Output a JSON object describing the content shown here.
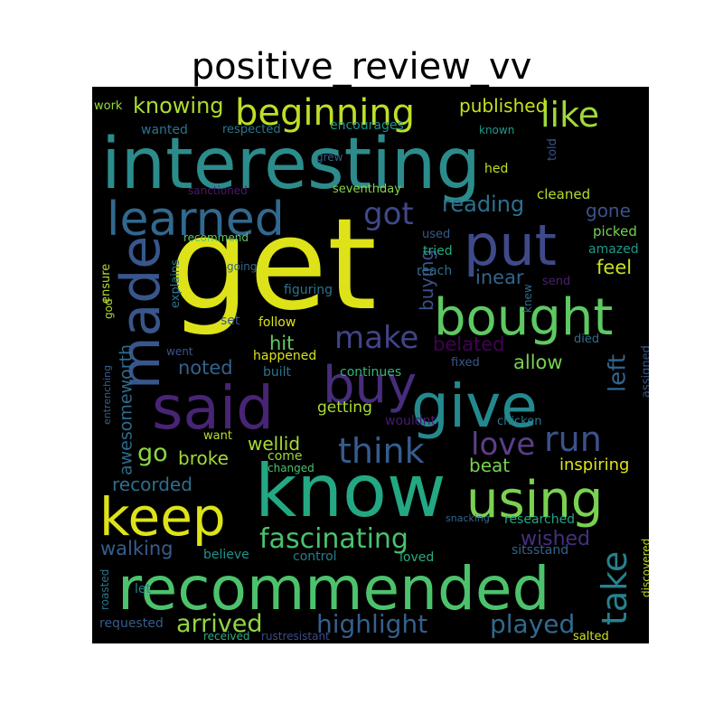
{
  "chart_data": {
    "type": "wordcloud",
    "title": "positive_review_vv",
    "background": "#000000",
    "words": [
      {
        "text": "get",
        "color": "#dde318"
      },
      {
        "text": "interesting",
        "color": "#2c8c8c"
      },
      {
        "text": "know",
        "color": "#23a883"
      },
      {
        "text": "recommended",
        "color": "#4cc26c"
      },
      {
        "text": "give",
        "color": "#23898e"
      },
      {
        "text": "put",
        "color": "#3e4a89"
      },
      {
        "text": "said",
        "color": "#482475"
      },
      {
        "text": "bought",
        "color": "#5ec962"
      },
      {
        "text": "using",
        "color": "#7ad151"
      },
      {
        "text": "keep",
        "color": "#dde318"
      },
      {
        "text": "learned",
        "color": "#31688e"
      },
      {
        "text": "buy",
        "color": "#472d7b"
      },
      {
        "text": "beginning",
        "color": "#bddf26"
      },
      {
        "text": "made",
        "color": "#39568c"
      },
      {
        "text": "fascinating",
        "color": "#4ac16d"
      },
      {
        "text": "like",
        "color": "#9fda3a"
      },
      {
        "text": "think",
        "color": "#365c8d"
      },
      {
        "text": "take",
        "color": "#26828e"
      },
      {
        "text": "run",
        "color": "#3b528b"
      },
      {
        "text": "love",
        "color": "#5b3f88"
      },
      {
        "text": "got",
        "color": "#3f4889"
      },
      {
        "text": "make",
        "color": "#414487"
      },
      {
        "text": "highlight",
        "color": "#355f8d"
      },
      {
        "text": "arrived",
        "color": "#90d743"
      },
      {
        "text": "played",
        "color": "#306a8e"
      },
      {
        "text": "left",
        "color": "#32648e"
      },
      {
        "text": "go",
        "color": "#8bd646"
      },
      {
        "text": "knowing",
        "color": "#addc30"
      },
      {
        "text": "reading",
        "color": "#2c718e"
      },
      {
        "text": "walking",
        "color": "#355e8d"
      },
      {
        "text": "recorded",
        "color": "#2e6e8e"
      },
      {
        "text": "wished",
        "color": "#472f7d"
      },
      {
        "text": "belated",
        "color": "#440154"
      },
      {
        "text": "buying",
        "color": "#3b518b"
      },
      {
        "text": "published",
        "color": "#c8e020"
      },
      {
        "text": "noted",
        "color": "#33628d"
      },
      {
        "text": "allow",
        "color": "#77d153"
      },
      {
        "text": "broke",
        "color": "#a2da37"
      },
      {
        "text": "wellid",
        "color": "#a5db36"
      },
      {
        "text": "inspiring",
        "color": "#dde318"
      },
      {
        "text": "awesomeworth",
        "color": "#2f6b8e"
      },
      {
        "text": "feel",
        "color": "#cae11f"
      },
      {
        "text": "gone",
        "color": "#3b528b"
      },
      {
        "text": "hit",
        "color": "#5ec962"
      },
      {
        "text": "inear",
        "color": "#32658e"
      },
      {
        "text": "beat",
        "color": "#7ad151"
      },
      {
        "text": "getting",
        "color": "#a8db34"
      },
      {
        "text": "work",
        "color": "#9bd93c"
      },
      {
        "text": "wanted",
        "color": "#2c728e"
      },
      {
        "text": "respected",
        "color": "#2a768e"
      },
      {
        "text": "encourages",
        "color": "#1f948c"
      },
      {
        "text": "known",
        "color": "#1f9a8a"
      },
      {
        "text": "told",
        "color": "#3a548c"
      },
      {
        "text": "grew",
        "color": "#33628d"
      },
      {
        "text": "hed",
        "color": "#c0df25"
      },
      {
        "text": "sanctioned",
        "color": "#481a6c"
      },
      {
        "text": "seventhday",
        "color": "#85d54a"
      },
      {
        "text": "cleaned",
        "color": "#b5de2b"
      },
      {
        "text": "recommend",
        "color": "#5ec962"
      },
      {
        "text": "used",
        "color": "#375a8c"
      },
      {
        "text": "tried",
        "color": "#25ac82"
      },
      {
        "text": "picked",
        "color": "#75d054"
      },
      {
        "text": "amazed",
        "color": "#1f978b"
      },
      {
        "text": "ensure",
        "color": "#b0dd2f"
      },
      {
        "text": "explains",
        "color": "#2b758e"
      },
      {
        "text": "going",
        "color": "#31678e"
      },
      {
        "text": "figuring",
        "color": "#2c738e"
      },
      {
        "text": "reach",
        "color": "#2e6d8e"
      },
      {
        "text": "send",
        "color": "#482173"
      },
      {
        "text": "god",
        "color": "#b2dd2d"
      },
      {
        "text": "set",
        "color": "#39558c"
      },
      {
        "text": "knew",
        "color": "#2e6d8e"
      },
      {
        "text": "follow",
        "color": "#dde318"
      },
      {
        "text": "went",
        "color": "#3a548c"
      },
      {
        "text": "happened",
        "color": "#d8e219"
      },
      {
        "text": "continues",
        "color": "#32b67a"
      },
      {
        "text": "died",
        "color": "#2d708e"
      },
      {
        "text": "built",
        "color": "#2c728e"
      },
      {
        "text": "fixed",
        "color": "#39568c"
      },
      {
        "text": "assigned",
        "color": "#39568c"
      },
      {
        "text": "entrenching",
        "color": "#34608d"
      },
      {
        "text": "want",
        "color": "#b8de29"
      },
      {
        "text": "wouldnt",
        "color": "#481b6d"
      },
      {
        "text": "chicken",
        "color": "#287c8e"
      },
      {
        "text": "come",
        "color": "#9bd93c"
      },
      {
        "text": "changed",
        "color": "#4ac16d"
      },
      {
        "text": "snacking",
        "color": "#31688e"
      },
      {
        "text": "researched",
        "color": "#21a685"
      },
      {
        "text": "sitsstand",
        "color": "#33628d"
      },
      {
        "text": "believe",
        "color": "#20928c"
      },
      {
        "text": "control",
        "color": "#287d8e"
      },
      {
        "text": "loved",
        "color": "#27ad81"
      },
      {
        "text": "discovered",
        "color": "#bade28"
      },
      {
        "text": "roasted",
        "color": "#2b758e"
      },
      {
        "text": "let",
        "color": "#25838e"
      },
      {
        "text": "requested",
        "color": "#365d8d"
      },
      {
        "text": "received",
        "color": "#29af7f"
      },
      {
        "text": "rustresistant",
        "color": "#3e4a89"
      },
      {
        "text": "salted",
        "color": "#cde11d"
      }
    ]
  }
}
